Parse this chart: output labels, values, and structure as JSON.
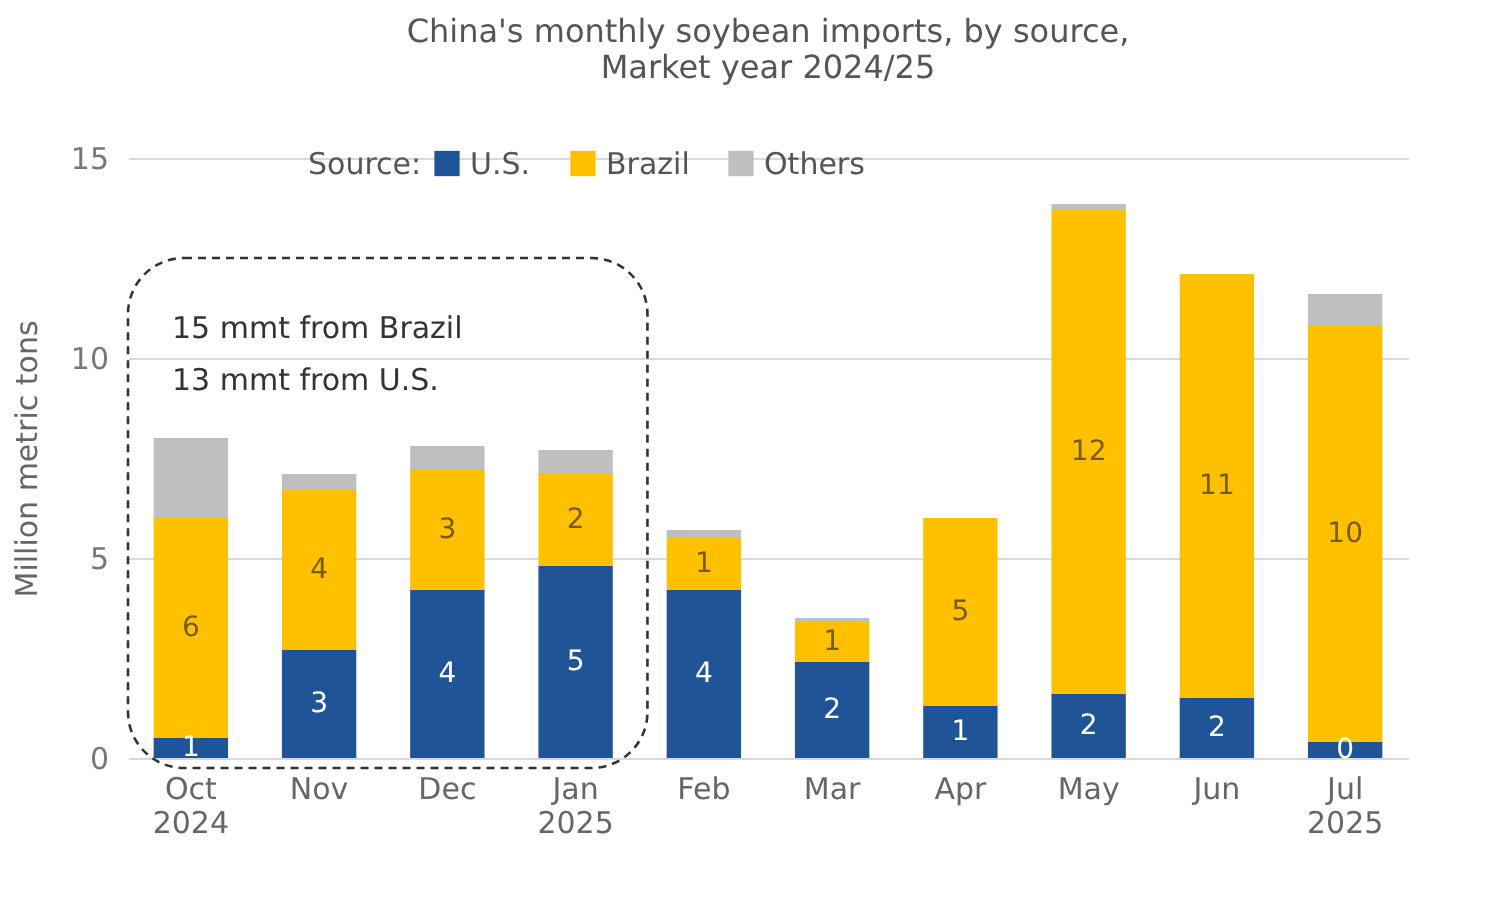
{
  "chart_data": {
    "type": "bar",
    "stacked": true,
    "title": "China's monthly soybean imports, by source,\nMarket year 2024/25",
    "ylabel": "Million metric tons",
    "legend_title": "Source:",
    "legend": "top",
    "grid": "y",
    "categories": [
      "Oct\n2024",
      "Nov",
      "Dec",
      "Jan\n2025",
      "Feb",
      "Mar",
      "Apr",
      "May",
      "Jun",
      "Jul\n2025"
    ],
    "ylim": [
      0,
      15
    ],
    "yticks": [
      0,
      5,
      10,
      15
    ],
    "series": [
      {
        "name": "U.S.",
        "color": "#1f5597",
        "values": [
          0.5,
          2.7,
          4.2,
          4.8,
          4.2,
          2.4,
          1.3,
          1.6,
          1.5,
          0.4
        ],
        "value_labels": [
          "1",
          "3",
          "4",
          "5",
          "4",
          "2",
          "1",
          "2",
          "2",
          "0"
        ]
      },
      {
        "name": "Brazil",
        "color": "#ffc000",
        "values": [
          5.5,
          4.0,
          3.0,
          2.3,
          1.3,
          1.0,
          4.7,
          12.1,
          10.6,
          10.4
        ],
        "value_labels": [
          "6",
          "4",
          "3",
          "2",
          "1",
          "1",
          "5",
          "12",
          "11",
          "10"
        ]
      },
      {
        "name": "Others",
        "color": "#bfbfbf",
        "values": [
          2.0,
          0.4,
          0.6,
          0.6,
          0.2,
          0.1,
          null,
          0.15,
          null,
          0.8
        ]
      }
    ],
    "annotations": [
      "15 mmt from Brazil",
      "13 mmt from U.S."
    ]
  }
}
